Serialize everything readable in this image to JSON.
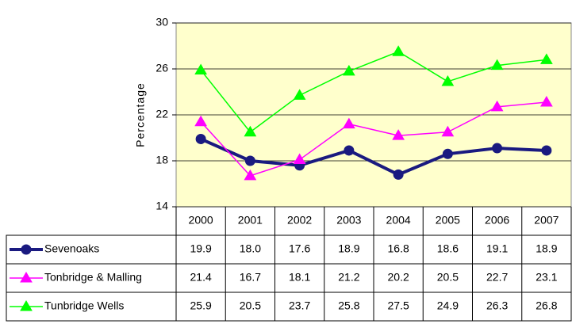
{
  "chart_data": {
    "type": "line",
    "y_label": "Percentage",
    "categories": [
      "2000",
      "2001",
      "2002",
      "2003",
      "2004",
      "2005",
      "2006",
      "2007"
    ],
    "series": [
      {
        "name": "Sevenoaks",
        "color": "#1a1a80",
        "marker": "circle",
        "line_width": 4,
        "values": [
          19.9,
          18.0,
          17.6,
          18.9,
          16.8,
          18.6,
          19.1,
          18.9
        ],
        "value_labels": [
          "19.9",
          "18.0",
          "17.6",
          "18.9",
          "16.8",
          "18.6",
          "19.1",
          "18.9"
        ]
      },
      {
        "name": "Tonbridge & Malling",
        "color": "#ff00ff",
        "marker": "triangle",
        "line_width": 1.5,
        "values": [
          21.4,
          16.7,
          18.1,
          21.2,
          20.2,
          20.5,
          22.7,
          23.1
        ],
        "value_labels": [
          "21.4",
          "16.7",
          "18.1",
          "21.2",
          "20.2",
          "20.5",
          "22.7",
          "23.1"
        ]
      },
      {
        "name": "Tunbridge Wells",
        "color": "#00ff00",
        "marker": "triangle",
        "line_width": 1.5,
        "values": [
          25.9,
          20.5,
          23.7,
          25.8,
          27.5,
          24.9,
          26.3,
          26.8
        ],
        "value_labels": [
          "25.9",
          "20.5",
          "23.7",
          "25.8",
          "27.5",
          "24.9",
          "26.3",
          "26.8"
        ]
      }
    ],
    "ylim": [
      14,
      30
    ],
    "yticks": [
      14,
      18,
      22,
      26,
      30
    ],
    "grid": true,
    "plot_background": "#ffffcc"
  }
}
